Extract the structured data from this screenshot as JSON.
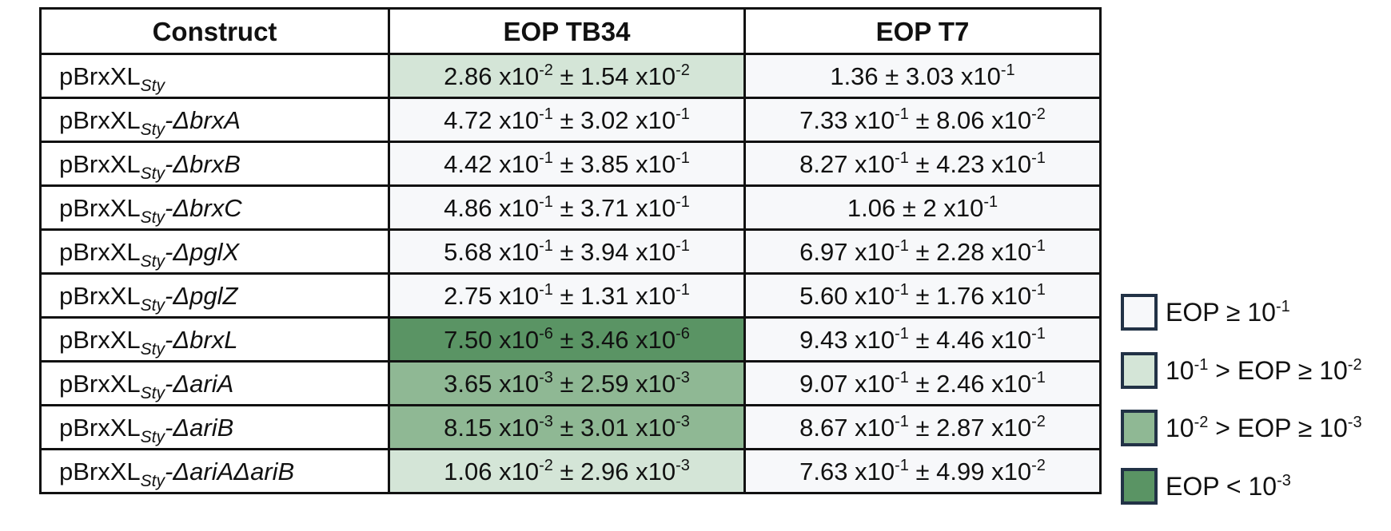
{
  "table": {
    "headers": [
      "Construct",
      "EOP TB34",
      "EOP T7"
    ],
    "rows": [
      {
        "construct": {
          "base": "pBrxXL",
          "sub": "Sty",
          "suffix": ""
        },
        "tb34": {
          "m": "2.86",
          "me": "-2",
          "s": "1.54",
          "se": "-2"
        },
        "tb34_level": "1",
        "t7": {
          "m": "1.36",
          "me": "",
          "s": "3.03",
          "se": "-1"
        }
      },
      {
        "construct": {
          "base": "pBrxXL",
          "sub": "Sty",
          "suffix": "-ΔbrxA"
        },
        "tb34": {
          "m": "4.72",
          "me": "-1",
          "s": "3.02",
          "se": "-1"
        },
        "tb34_level": "none",
        "t7": {
          "m": "7.33",
          "me": "-1",
          "s": "8.06",
          "se": "-2"
        }
      },
      {
        "construct": {
          "base": "pBrxXL",
          "sub": "Sty",
          "suffix": "-ΔbrxB"
        },
        "tb34": {
          "m": "4.42",
          "me": "-1",
          "s": "3.85",
          "se": "-1"
        },
        "tb34_level": "none",
        "t7": {
          "m": "8.27",
          "me": "-1",
          "s": "4.23",
          "se": "-1"
        }
      },
      {
        "construct": {
          "base": "pBrxXL",
          "sub": "Sty",
          "suffix": "-ΔbrxC"
        },
        "tb34": {
          "m": "4.86",
          "me": "-1",
          "s": "3.71",
          "se": "-1"
        },
        "tb34_level": "none",
        "t7": {
          "m": "1.06",
          "me": "",
          "s": "2",
          "se": "-1"
        }
      },
      {
        "construct": {
          "base": "pBrxXL",
          "sub": "Sty",
          "suffix": "-ΔpglX"
        },
        "tb34": {
          "m": "5.68",
          "me": "-1",
          "s": "3.94",
          "se": "-1"
        },
        "tb34_level": "none",
        "t7": {
          "m": "6.97",
          "me": "-1",
          "s": "2.28",
          "se": "-1"
        }
      },
      {
        "construct": {
          "base": "pBrxXL",
          "sub": "Sty",
          "suffix": "-ΔpglZ"
        },
        "tb34": {
          "m": "2.75",
          "me": "-1",
          "s": "1.31",
          "se": "-1"
        },
        "tb34_level": "none",
        "t7": {
          "m": "5.60",
          "me": "-1",
          "s": "1.76",
          "se": "-1"
        }
      },
      {
        "construct": {
          "base": "pBrxXL",
          "sub": "Sty",
          "suffix": "-ΔbrxL"
        },
        "tb34": {
          "m": "7.50",
          "me": "-6",
          "s": "3.46",
          "se": "-6"
        },
        "tb34_level": "3",
        "t7": {
          "m": "9.43",
          "me": "-1",
          "s": "4.46",
          "se": "-1"
        }
      },
      {
        "construct": {
          "base": "pBrxXL",
          "sub": "Sty",
          "suffix": "-ΔariA"
        },
        "tb34": {
          "m": "3.65",
          "me": "-3",
          "s": "2.59",
          "se": "-3"
        },
        "tb34_level": "2",
        "t7": {
          "m": "9.07",
          "me": "-1",
          "s": "2.46",
          "se": "-1"
        }
      },
      {
        "construct": {
          "base": "pBrxXL",
          "sub": "Sty",
          "suffix": "-ΔariB"
        },
        "tb34": {
          "m": "8.15",
          "me": "-3",
          "s": "3.01",
          "se": "-3"
        },
        "tb34_level": "2",
        "t7": {
          "m": "8.67",
          "me": "-1",
          "s": "2.87",
          "se": "-2"
        }
      },
      {
        "construct": {
          "base": "pBrxXL",
          "sub": "Sty",
          "suffix": "-ΔariAΔariB"
        },
        "tb34": {
          "m": "1.06",
          "me": "-2",
          "s": "2.96",
          "se": "-3"
        },
        "tb34_level": "1",
        "t7": {
          "m": "7.63",
          "me": "-1",
          "s": "4.99",
          "se": "-2"
        }
      }
    ]
  },
  "legend": [
    {
      "level": "none",
      "a": "EOP ≥ 10",
      "ae": "-1",
      "b": "",
      "be": ""
    },
    {
      "level": "1",
      "a": "10",
      "ae": "-1",
      "b": " > EOP ≥ 10",
      "be": "-2"
    },
    {
      "level": "2",
      "a": "10",
      "ae": "-2",
      "b": " > EOP ≥ 10",
      "be": "-3"
    },
    {
      "level": "3",
      "a": "EOP < 10",
      "ae": "-3",
      "b": "",
      "be": ""
    }
  ]
}
